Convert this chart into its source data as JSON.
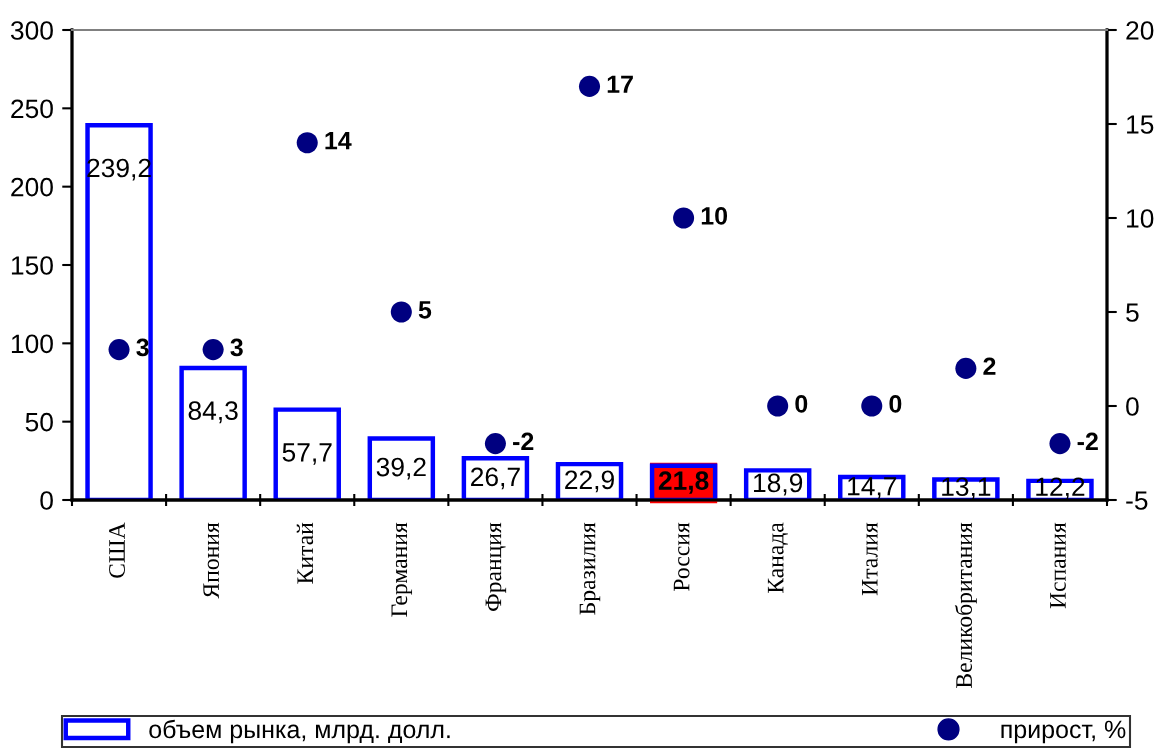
{
  "chart_data": {
    "type": "bar",
    "categories": [
      "США",
      "Япония",
      "Китай",
      "Германия",
      "Франция",
      "Бразилия",
      "Россия",
      "Канада",
      "Италия",
      "Великобритания",
      "Испания"
    ],
    "series": [
      {
        "name": "объем рынка, млрд. долл.",
        "color": "#0000ff",
        "values": [
          239.2,
          84.3,
          57.7,
          39.2,
          26.7,
          22.9,
          21.8,
          18.9,
          14.7,
          13.1,
          12.2
        ],
        "value_labels": [
          "239,2",
          "84,3",
          "57,7",
          "39,2",
          "26,7",
          "22,9",
          null,
          "18,9",
          "14,7",
          "13,1",
          "12,2"
        ]
      },
      {
        "name": "прирост, %",
        "type": "scatter",
        "axis": "y2",
        "color": "#000080",
        "values": [
          3,
          3,
          14,
          5,
          -2,
          17,
          10,
          0,
          0,
          2,
          -2
        ],
        "value_labels": [
          "3",
          "3",
          "14",
          "5",
          "-2",
          "17",
          "10",
          "0",
          "0",
          "2",
          "-2"
        ]
      }
    ],
    "annotations": [
      {
        "text": "21,8",
        "x": "Россия",
        "y": 21.8
      }
    ],
    "ylim": [
      0,
      300
    ],
    "yticks": [
      0,
      50,
      100,
      150,
      200,
      250,
      300
    ],
    "y2lim": [
      -5,
      20
    ],
    "y2ticks": [
      -5,
      0,
      5,
      10,
      15,
      20
    ],
    "marker": "circle",
    "grid": false,
    "legend": "bottom"
  }
}
